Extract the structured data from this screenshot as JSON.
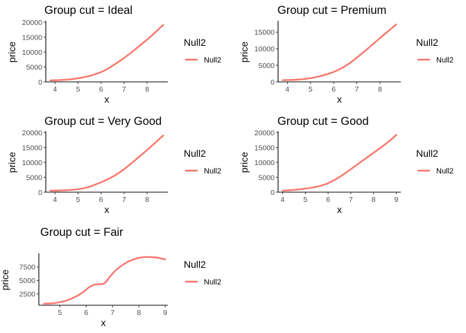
{
  "chart_data": [
    {
      "type": "line",
      "title": "Group cut  = Ideal",
      "xlabel": "x",
      "ylabel": "price",
      "xlim": [
        3.6,
        8.9
      ],
      "ylim": [
        0,
        20000
      ],
      "xticks": [
        4,
        5,
        6,
        7,
        8
      ],
      "yticks": [
        0,
        5000,
        10000,
        15000,
        20000
      ],
      "legend": {
        "title": "Null2",
        "position": "right"
      },
      "series": [
        {
          "name": "Null2",
          "color": "#F8766D",
          "x": [
            3.8,
            4.2,
            4.6,
            5.0,
            5.4,
            5.8,
            6.2,
            6.6,
            7.0,
            7.4,
            7.8,
            8.2,
            8.7
          ],
          "y": [
            500,
            600,
            800,
            1200,
            1800,
            2700,
            4000,
            5900,
            8000,
            10400,
            12900,
            15500,
            19100
          ]
        }
      ]
    },
    {
      "type": "line",
      "title": "Group cut  = Premium",
      "xlabel": "x",
      "ylabel": "price",
      "xlim": [
        3.6,
        8.9
      ],
      "ylim": [
        0,
        18000
      ],
      "xticks": [
        4,
        5,
        6,
        7,
        8
      ],
      "yticks": [
        0,
        5000,
        10000,
        15000
      ],
      "legend": {
        "title": "Null2",
        "position": "right"
      },
      "series": [
        {
          "name": "Null2",
          "color": "#F8766D",
          "x": [
            3.8,
            4.2,
            4.6,
            5.0,
            5.4,
            5.8,
            6.2,
            6.6,
            7.0,
            7.4,
            7.8,
            8.2,
            8.7
          ],
          "y": [
            500,
            600,
            750,
            1100,
            1700,
            2500,
            3600,
            5200,
            7300,
            9600,
            12000,
            14400,
            17300
          ]
        }
      ]
    },
    {
      "type": "line",
      "title": "Group cut  = Very Good",
      "xlabel": "x",
      "ylabel": "price",
      "xlim": [
        3.6,
        8.9
      ],
      "ylim": [
        0,
        20000
      ],
      "xticks": [
        4,
        5,
        6,
        7,
        8
      ],
      "yticks": [
        0,
        5000,
        10000,
        15000,
        20000
      ],
      "legend": {
        "title": "Null2",
        "position": "right"
      },
      "series": [
        {
          "name": "Null2",
          "color": "#F8766D",
          "x": [
            3.8,
            4.2,
            4.6,
            5.0,
            5.4,
            5.8,
            6.2,
            6.6,
            7.0,
            7.4,
            7.8,
            8.2,
            8.7
          ],
          "y": [
            500,
            550,
            700,
            1000,
            1600,
            2700,
            4000,
            5600,
            7700,
            10200,
            12800,
            15500,
            19000
          ]
        }
      ]
    },
    {
      "type": "line",
      "title": "Group cut  = Good",
      "xlabel": "x",
      "ylabel": "price",
      "xlim": [
        3.8,
        9.2
      ],
      "ylim": [
        0,
        20000
      ],
      "xticks": [
        4,
        5,
        6,
        7,
        8,
        9
      ],
      "yticks": [
        0,
        5000,
        10000,
        15000,
        20000
      ],
      "legend": {
        "title": "Null2",
        "position": "right"
      },
      "series": [
        {
          "name": "Null2",
          "color": "#F8766D",
          "x": [
            4.0,
            4.4,
            4.8,
            5.2,
            5.6,
            6.0,
            6.4,
            6.8,
            7.2,
            7.6,
            8.0,
            8.4,
            8.8,
            9.0
          ],
          "y": [
            500,
            700,
            1000,
            1400,
            2000,
            3000,
            4600,
            6600,
            8800,
            11000,
            13200,
            15400,
            17800,
            19200
          ]
        }
      ]
    },
    {
      "type": "line",
      "title": "Group cut  = Fair",
      "xlabel": "x",
      "ylabel": "price",
      "xlim": [
        4.2,
        9.1
      ],
      "ylim": [
        400,
        9800
      ],
      "xticks": [
        5,
        6,
        7,
        8,
        9
      ],
      "yticks": [
        2500,
        5000,
        7500
      ],
      "legend": {
        "title": "Null2",
        "position": "right"
      },
      "series": [
        {
          "name": "Null2",
          "color": "#F8766D",
          "x": [
            4.4,
            4.8,
            5.2,
            5.6,
            5.9,
            6.1,
            6.3,
            6.5,
            6.7,
            6.9,
            7.1,
            7.3,
            7.6,
            8.0,
            8.3,
            8.6,
            8.8,
            9.0
          ],
          "y": [
            700,
            800,
            1200,
            2000,
            2900,
            3700,
            4200,
            4300,
            4500,
            5700,
            6800,
            7600,
            8500,
            9200,
            9350,
            9300,
            9150,
            8900
          ]
        }
      ]
    }
  ]
}
